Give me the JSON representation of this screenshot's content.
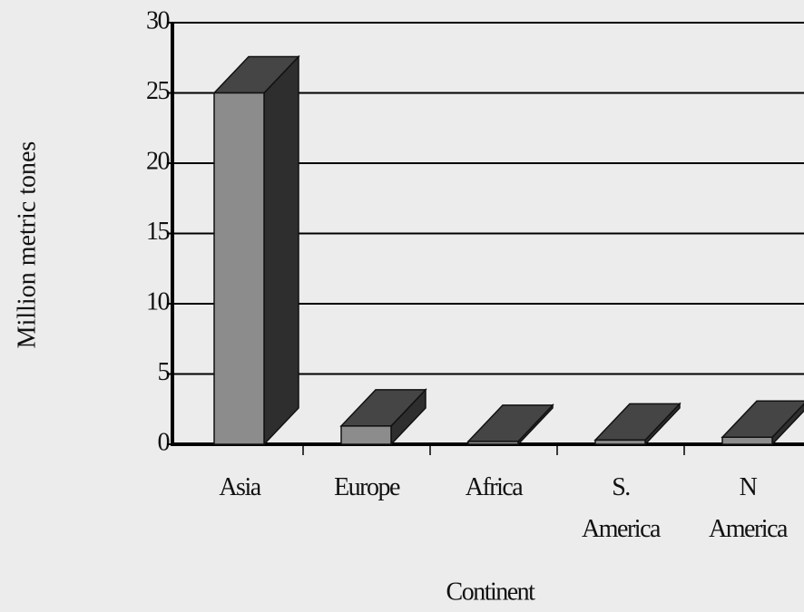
{
  "chart_data": {
    "type": "bar3d",
    "x_label": "Continent",
    "y_label": "Million metric tones",
    "categories": [
      "Asia",
      "Europe",
      "Africa",
      "S. America",
      "N America"
    ],
    "values": [
      25,
      1.3,
      0.2,
      0.3,
      0.5
    ],
    "colors": {
      "front": "#8c8c8c",
      "side": "#2e2e2e",
      "top": "#454545"
    },
    "ylim": [
      0,
      30
    ],
    "yticks": [
      0,
      5,
      10,
      15,
      20,
      25,
      30
    ],
    "grid": true
  }
}
